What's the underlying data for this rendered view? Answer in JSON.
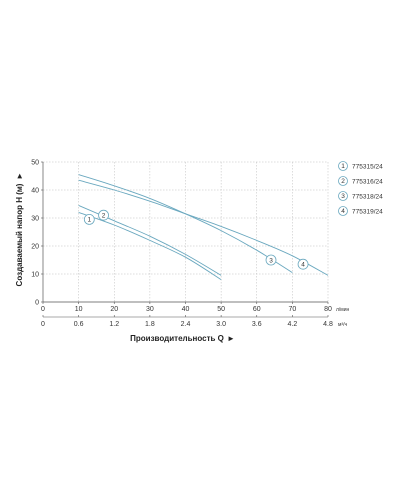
{
  "chart_data": {
    "type": "line",
    "title": "",
    "xlabel": "Производительность Q",
    "ylabel": "Создаваемый напор H (м)",
    "x_unit_primary": "л/мин",
    "x_unit_secondary": "м³/ч",
    "xlim": [
      0,
      80
    ],
    "ylim": [
      0,
      50
    ],
    "x_ticks": [
      0,
      10,
      20,
      30,
      40,
      50,
      60,
      70,
      80
    ],
    "y_ticks": [
      0,
      10,
      20,
      30,
      40,
      50
    ],
    "x_ticks_secondary": [
      "0",
      "0.6",
      "1.2",
      "1.8",
      "2.4",
      "3.0",
      "3.6",
      "4.2",
      "4.8"
    ],
    "grid": true,
    "legend_position": "right",
    "series": [
      {
        "name": "775315/24",
        "marker": "1",
        "color": "#6aa8bf",
        "x": [
          10,
          20,
          30,
          40,
          50
        ],
        "y": [
          34.5,
          29,
          23.5,
          17,
          9.5
        ],
        "marker_at": [
          13,
          29.5
        ]
      },
      {
        "name": "775316/24",
        "marker": "2",
        "color": "#6aa8bf",
        "x": [
          10,
          20,
          30,
          40,
          50
        ],
        "y": [
          32,
          27.5,
          22,
          16,
          8
        ],
        "marker_at": [
          17,
          31
        ]
      },
      {
        "name": "775318/24",
        "marker": "3",
        "color": "#6aa8bf",
        "x": [
          10,
          20,
          30,
          40,
          50,
          60,
          70
        ],
        "y": [
          45.5,
          41.5,
          37,
          31.5,
          25.5,
          18.5,
          10.5
        ],
        "marker_at": [
          64,
          15
        ]
      },
      {
        "name": "775319/24",
        "marker": "4",
        "color": "#6aa8bf",
        "x": [
          10,
          20,
          30,
          40,
          50,
          60,
          70,
          80
        ],
        "y": [
          43.5,
          40,
          36,
          31.5,
          27,
          22,
          16.5,
          9.5
        ],
        "marker_at": [
          73,
          13.5
        ]
      }
    ]
  }
}
